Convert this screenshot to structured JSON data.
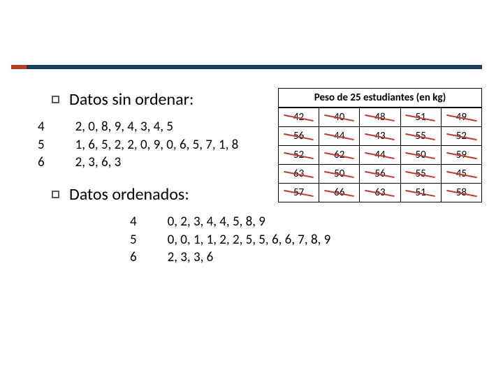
{
  "colors": {
    "accent_red": "#c0392b",
    "accent_navy": "#1f3a63",
    "strike_color": "#c0392b",
    "border_color": "#000000",
    "text_color": "#000000",
    "background": "#ffffff"
  },
  "typography": {
    "heading_fontsize": 24,
    "body_fontsize": 19,
    "table_fontsize": 15
  },
  "headings": {
    "unordered": "Datos sin ordenar:",
    "ordered": "Datos ordenados:"
  },
  "stems": {
    "s1": "4",
    "s2": "5",
    "s3": "6"
  },
  "unordered_leaves": {
    "l1": "2, 0, 8, 9, 4, 3, 4, 5",
    "l2": "1, 6, 5, 2, 2, 0, 9, 0, 6, 5, 7, 1, 8",
    "l3": "2, 3, 6, 3"
  },
  "ordered_stems": {
    "s1": "4",
    "s2": "5",
    "s3": "6"
  },
  "ordered_leaves": {
    "l1": "0, 2, 3, 4, 4, 5, 8, 9",
    "l2": "0, 0, 1, 1, 2, 2, 5, 5, 6, 6, 7, 8, 9",
    "l3": "2, 3, 3, 6"
  },
  "table": {
    "title": "Peso de 25 estudiantes (en kg)",
    "rows": [
      [
        "42",
        "40",
        "48",
        "51",
        "49"
      ],
      [
        "56",
        "44",
        "43",
        "55",
        "52"
      ],
      [
        "52",
        "62",
        "44",
        "50",
        "59"
      ],
      [
        "63",
        "50",
        "56",
        "55",
        "45"
      ],
      [
        "57",
        "66",
        "63",
        "51",
        "58"
      ]
    ],
    "all_struck": true
  }
}
